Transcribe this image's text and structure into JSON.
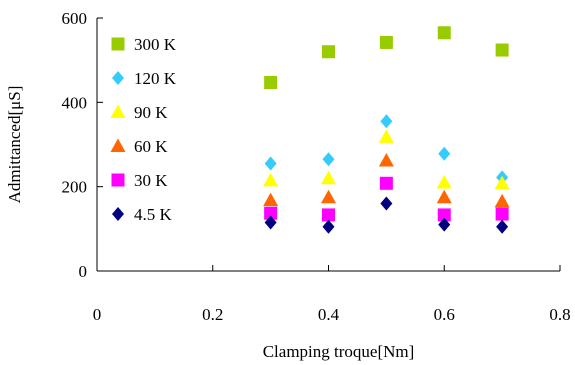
{
  "chart_data": {
    "type": "scatter",
    "title": "",
    "xlabel": "Clamping troque[Nm]",
    "ylabel": "Admittanced[μS]",
    "xlim": [
      0,
      0.8
    ],
    "ylim": [
      0,
      600
    ],
    "xticks": [
      "0",
      "0.2",
      "0.4",
      "0.6",
      "0.8"
    ],
    "yticks": [
      "0",
      "200",
      "400",
      "600"
    ],
    "grid": false,
    "legend_position": "top-left",
    "series": [
      {
        "name": "300 K",
        "marker": "square",
        "color": "#99cc00",
        "x": [
          0.3,
          0.4,
          0.5,
          0.6,
          0.7
        ],
        "y": [
          447,
          520,
          542,
          565,
          524
        ]
      },
      {
        "name": "120 K",
        "marker": "diamond",
        "color": "#33ccff",
        "x": [
          0.3,
          0.4,
          0.5,
          0.6,
          0.7
        ],
        "y": [
          255,
          265,
          355,
          278,
          222
        ]
      },
      {
        "name": "90 K",
        "marker": "triangle",
        "color": "#ffff00",
        "x": [
          0.3,
          0.4,
          0.5,
          0.6,
          0.7
        ],
        "y": [
          215,
          220,
          318,
          210,
          208
        ]
      },
      {
        "name": "60 K",
        "marker": "triangle",
        "color": "#ff6600",
        "x": [
          0.3,
          0.4,
          0.5,
          0.6,
          0.7
        ],
        "y": [
          168,
          175,
          262,
          175,
          165
        ]
      },
      {
        "name": "30 K",
        "marker": "square",
        "color": "#ff00ff",
        "x": [
          0.3,
          0.4,
          0.5,
          0.6,
          0.7
        ],
        "y": [
          137,
          133,
          208,
          133,
          135
        ]
      },
      {
        "name": "4.5 K",
        "marker": "diamond",
        "color": "#000080",
        "x": [
          0.3,
          0.4,
          0.5,
          0.6,
          0.7
        ],
        "y": [
          115,
          105,
          160,
          110,
          105
        ]
      }
    ]
  }
}
